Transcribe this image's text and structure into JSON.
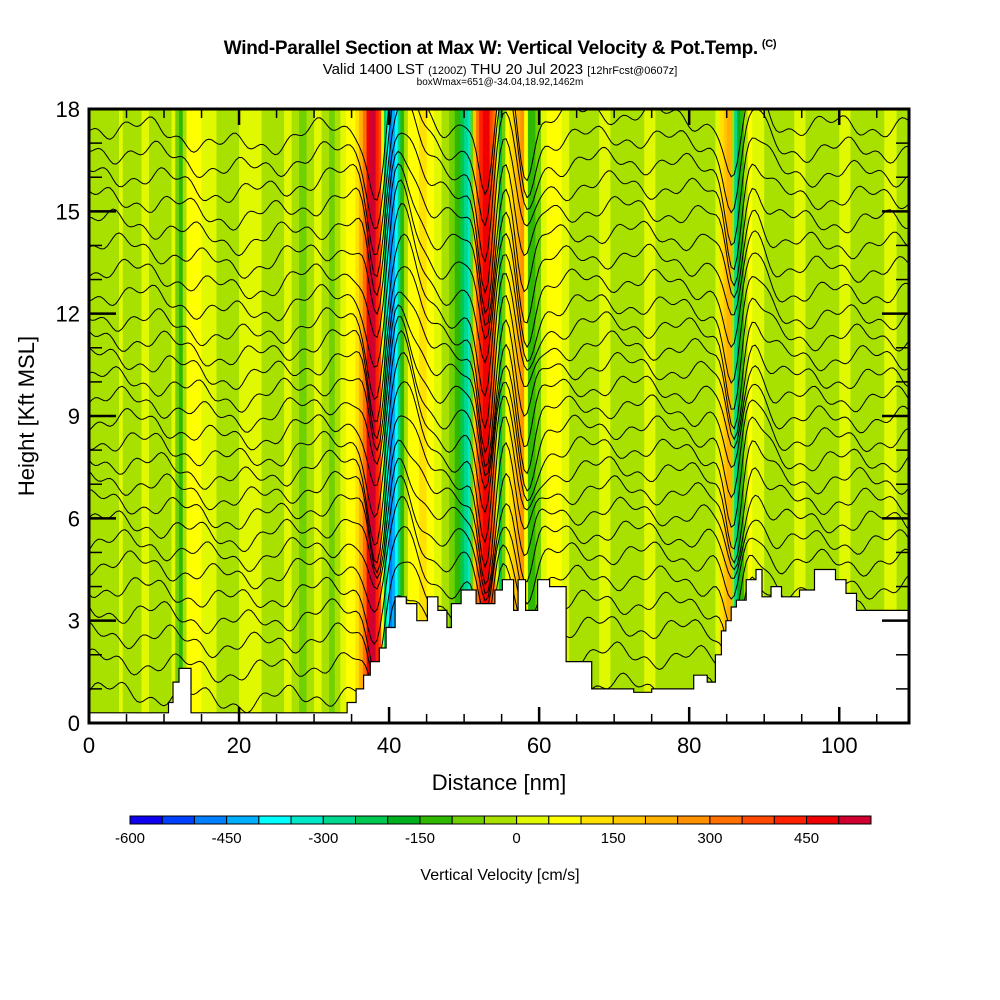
{
  "header": {
    "title": "Wind-Parallel Section at Max W: Vertical Velocity & Pot.Temp.",
    "copyright": "(C)",
    "valid_prefix": "Valid 1400 LST",
    "valid_utc": "(1200Z)",
    "valid_date": "THU 20 Jul 2023",
    "forecast": "[12hrFcst@0607z]",
    "box_info": "boxWmax=651@-34.04,18.92,1462m"
  },
  "chart_data": {
    "type": "heatmap",
    "title": "Wind-Parallel Section at Max W: Vertical Velocity & Pot.Temp.",
    "xlabel": "Distance [nm]",
    "ylabel": "Height [Kft MSL]",
    "xlim": [
      0,
      109.3
    ],
    "ylim": [
      0,
      18
    ],
    "x_ticks": [
      0,
      20,
      40,
      60,
      80,
      100
    ],
    "y_ticks": [
      0,
      3,
      6,
      9,
      12,
      15,
      18
    ],
    "x_minor_step": 5,
    "y_minor_step": 1,
    "grid": false,
    "colorbar": {
      "title": "Vertical Velocity [cm/s]",
      "min": -600,
      "step": 50,
      "tick_labels": [
        "-600",
        "-450",
        "-300",
        "-150",
        "0",
        "150",
        "300",
        "450"
      ],
      "tick_values": [
        -600,
        -450,
        -300,
        -150,
        0,
        150,
        300,
        450
      ],
      "colors": [
        "#1000f0",
        "#0040ff",
        "#0080ff",
        "#00b0ff",
        "#00ffff",
        "#00e8c8",
        "#00d890",
        "#00c850",
        "#00b020",
        "#30b800",
        "#70d000",
        "#a8e000",
        "#e0f800",
        "#ffff00",
        "#ffe000",
        "#ffc800",
        "#ffb000",
        "#ff9000",
        "#ff7000",
        "#ff4800",
        "#ff2000",
        "#f00000",
        "#d00030"
      ]
    },
    "terrain_kft": {
      "x": [
        0,
        10.6,
        10.6,
        11.2,
        11.2,
        12.0,
        12.0,
        13.6,
        13.6,
        34.4,
        34.4,
        35.6,
        35.6,
        36.6,
        36.6,
        37.5,
        37.5,
        38.7,
        38.7,
        39.6,
        39.6,
        40.8,
        40.8,
        42.3,
        42.3,
        43.7,
        43.7,
        45.1,
        45.1,
        46.5,
        46.5,
        47.7,
        47.7,
        48.3,
        48.3,
        49.6,
        49.6,
        51.6,
        51.6,
        54.1,
        54.1,
        55.1,
        55.1,
        56.6,
        56.6,
        57.2,
        57.2,
        58.2,
        58.2,
        59.8,
        59.8,
        61.4,
        61.4,
        63.6,
        63.6,
        67.0,
        67.0,
        72.6,
        72.6,
        75.0,
        75.0,
        80.6,
        80.6,
        82.4,
        82.4,
        83.5,
        83.5,
        84.3,
        84.3,
        84.9,
        84.9,
        85.6,
        85.6,
        86.3,
        86.3,
        87.6,
        87.6,
        88.9,
        88.9,
        89.7,
        89.7,
        90.9,
        90.9,
        92.3,
        92.3,
        94.7,
        94.7,
        96.7,
        96.7,
        99.5,
        99.5,
        100.9,
        100.9,
        102.3,
        102.3,
        109.3
      ],
      "y": [
        0.3,
        0.3,
        0.6,
        0.6,
        1.2,
        1.2,
        1.6,
        1.6,
        0.3,
        0.3,
        0.6,
        0.6,
        1.0,
        1.0,
        1.4,
        1.4,
        1.8,
        1.8,
        2.2,
        2.2,
        2.8,
        2.8,
        3.7,
        3.7,
        3.5,
        3.5,
        3.0,
        3.0,
        3.7,
        3.7,
        3.3,
        3.3,
        2.8,
        2.8,
        3.5,
        3.5,
        3.9,
        3.9,
        3.5,
        3.5,
        3.9,
        3.9,
        4.2,
        4.2,
        3.3,
        3.3,
        4.2,
        4.2,
        3.3,
        3.3,
        4.2,
        4.2,
        4.0,
        4.0,
        1.8,
        1.8,
        1.0,
        1.0,
        0.9,
        0.9,
        1.0,
        1.0,
        1.4,
        1.4,
        1.2,
        1.2,
        2.0,
        2.0,
        2.7,
        2.7,
        3.0,
        3.0,
        3.4,
        3.4,
        3.6,
        3.6,
        4.2,
        4.2,
        4.5,
        4.5,
        3.7,
        3.7,
        4.0,
        4.0,
        3.7,
        3.7,
        3.9,
        3.9,
        4.5,
        4.5,
        4.2,
        4.2,
        3.8,
        3.8,
        3.3,
        3.3
      ]
    },
    "velocity_columns": {
      "x": [
        0,
        1.5,
        2.0,
        4.0,
        5.0,
        7.0,
        9.0,
        11.0,
        12.0,
        13.0,
        14.0,
        16.0,
        18.0,
        20.0,
        22.0,
        24.0,
        26.0,
        28.0,
        30.0,
        32.0,
        33.5,
        35.0,
        36.0,
        37.0,
        37.8,
        38.6,
        39.3,
        40.0,
        40.8,
        41.5,
        42.5,
        44.0,
        46.0,
        48.0,
        49.5,
        50.5,
        51.2,
        52.0,
        53.0,
        53.8,
        54.6,
        55.5,
        56.5,
        57.5,
        58.5,
        59.5,
        61.0,
        63.0,
        65.0,
        68.0,
        71.0,
        74.0,
        77.0,
        80.0,
        82.0,
        83.5,
        84.6,
        85.4,
        86.0,
        86.8,
        87.8,
        89.0,
        91.0,
        94.0,
        97.0,
        100.0,
        103.0,
        106.0,
        109.3
      ],
      "w_cms": [
        -50,
        -50,
        -20,
        10,
        -40,
        10,
        -40,
        10,
        -120,
        80,
        60,
        10,
        -30,
        10,
        20,
        -40,
        10,
        -60,
        10,
        -80,
        20,
        90,
        200,
        480,
        520,
        350,
        -250,
        -500,
        -380,
        -150,
        60,
        120,
        20,
        -70,
        -220,
        -320,
        180,
        420,
        480,
        300,
        -250,
        80,
        160,
        280,
        -150,
        -60,
        90,
        10,
        -30,
        20,
        -30,
        10,
        -40,
        -10,
        -50,
        40,
        180,
        230,
        -270,
        -120,
        80,
        10,
        -40,
        20,
        -30,
        10,
        -40,
        20,
        -30
      ]
    },
    "theta_contours": {
      "count": 26,
      "base_heights_kft": [
        0.9,
        1.8,
        2.6,
        3.3,
        4.0,
        4.7,
        5.3,
        5.9,
        6.5,
        7.1,
        7.7,
        8.3,
        8.9,
        9.5,
        10.1,
        10.7,
        11.3,
        11.9,
        12.6,
        13.3,
        14.0,
        14.7,
        15.4,
        16.1,
        16.8,
        17.5
      ],
      "perturbations": [
        {
          "x": 38.5,
          "width": 1.6,
          "amp_kft": -3.2
        },
        {
          "x": 41.2,
          "width": 3.0,
          "amp_kft": 2.4
        },
        {
          "x": 53.0,
          "width": 1.4,
          "amp_kft": -3.4
        },
        {
          "x": 55.5,
          "width": 3.0,
          "amp_kft": 2.0
        },
        {
          "x": 58.0,
          "width": 1.6,
          "amp_kft": -2.3
        },
        {
          "x": 86.0,
          "width": 1.5,
          "amp_kft": -2.6
        },
        {
          "x": 87.8,
          "width": 2.6,
          "amp_kft": 1.3
        },
        {
          "x": 20.0,
          "width": 9.0,
          "amp_kft": -0.6
        },
        {
          "x": 70.0,
          "width": 12.0,
          "amp_kft": 0.4
        }
      ]
    }
  }
}
